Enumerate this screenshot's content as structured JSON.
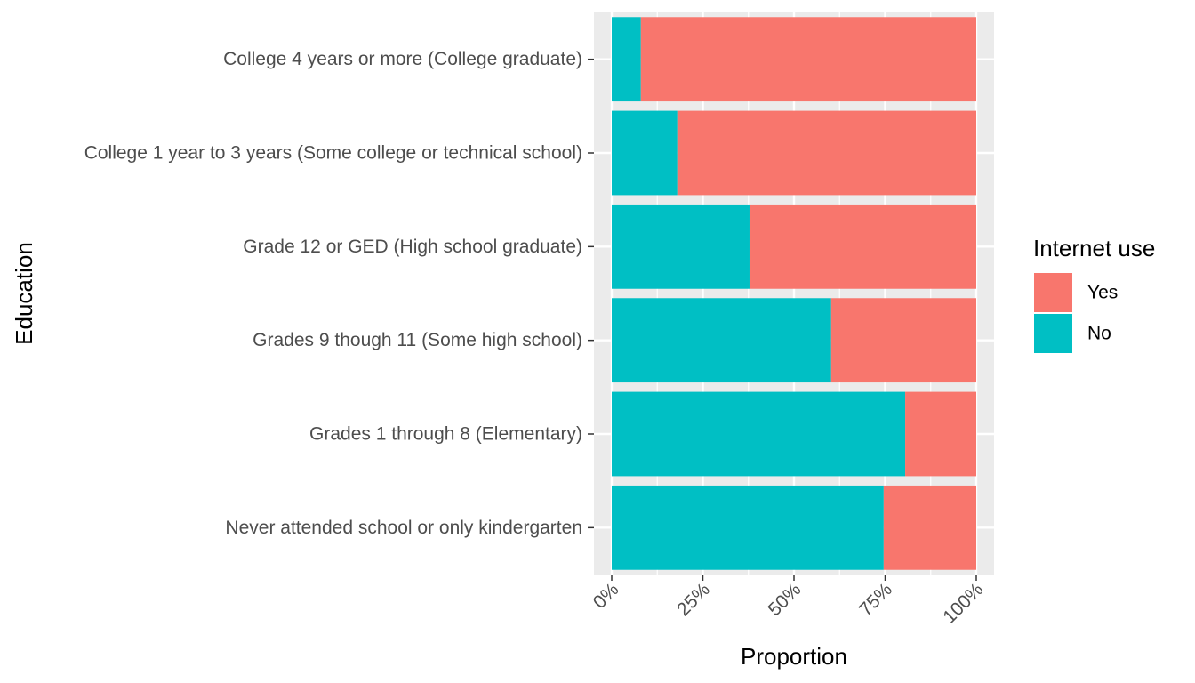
{
  "chart_data": {
    "type": "bar",
    "orientation": "horizontal",
    "stacked": true,
    "categories": [
      "College 4 years or more (College graduate)",
      "College 1 year to 3 years (Some college or technical school)",
      "Grade 12 or GED (High school graduate)",
      "Grades 9 though 11 (Some high school)",
      "Grades 1 through 8 (Elementary)",
      "Never attended school or only kindergarten"
    ],
    "series": [
      {
        "name": "No",
        "color": "#00BFC4",
        "values": [
          0.08,
          0.18,
          0.378,
          0.602,
          0.805,
          0.746
        ]
      },
      {
        "name": "Yes",
        "color": "#F8766D",
        "values": [
          0.92,
          0.82,
          0.622,
          0.398,
          0.195,
          0.254
        ]
      }
    ],
    "xlabel": "Proportion",
    "ylabel": "Education",
    "xlim": [
      0,
      1
    ],
    "x_ticks": [
      "0%",
      "25%",
      "50%",
      "75%",
      "100%"
    ],
    "x_tick_values": [
      0,
      0.25,
      0.5,
      0.75,
      1
    ],
    "grid": true,
    "legend": {
      "title": "Internet use",
      "placement": "right",
      "items": [
        {
          "label": "Yes",
          "color": "#F8766D"
        },
        {
          "label": "No",
          "color": "#00BFC4"
        }
      ]
    }
  }
}
